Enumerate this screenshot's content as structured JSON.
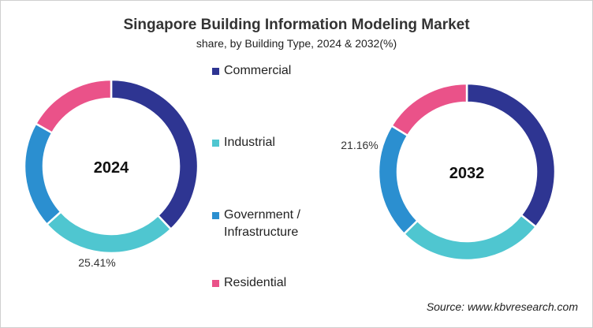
{
  "chart_data": [
    {
      "type": "pie",
      "donut": true,
      "title": "Singapore Building Information Modeling Market",
      "subtitle": "share, by Building Type, 2024 & 2032(%)",
      "center_label": "2024",
      "categories": [
        "Commercial",
        "Industrial",
        "Government / Infrastructure",
        "Residential"
      ],
      "values": [
        37.9,
        25.41,
        19.9,
        16.79
      ],
      "data_labels": [
        {
          "category": "Industrial",
          "text": "25.41%"
        }
      ],
      "colors": [
        "#2e3592",
        "#4fc6d0",
        "#2b8fd0",
        "#ea5289"
      ]
    },
    {
      "type": "pie",
      "donut": true,
      "center_label": "2032",
      "categories": [
        "Commercial",
        "Industrial",
        "Government / Infrastructure",
        "Residential"
      ],
      "values": [
        35.7,
        26.9,
        21.16,
        16.24
      ],
      "data_labels": [
        {
          "category": "Government / Infrastructure",
          "text": "21.16%"
        }
      ],
      "colors": [
        "#2e3592",
        "#4fc6d0",
        "#2b8fd0",
        "#ea5289"
      ]
    }
  ],
  "legend": {
    "placement": "center",
    "items": [
      {
        "label": "Commercial",
        "color": "#2e3592"
      },
      {
        "label": "Industrial",
        "color": "#4fc6d0"
      },
      {
        "label": "Government / Infrastructure",
        "color": "#2b8fd0"
      },
      {
        "label": "Residential",
        "color": "#ea5289"
      }
    ]
  },
  "source": "Source: www.kbvresearch.com"
}
